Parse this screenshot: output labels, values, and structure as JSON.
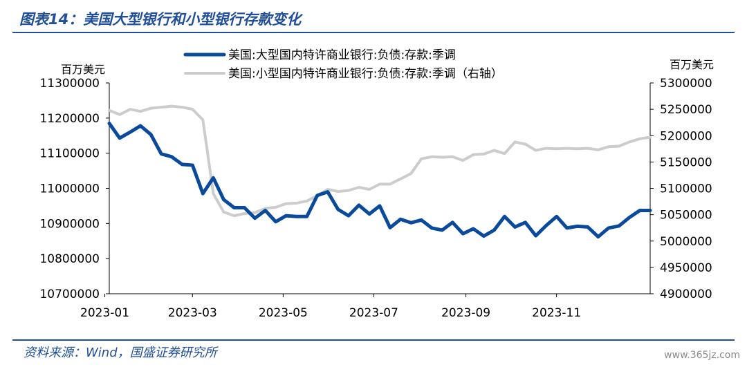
{
  "header": {
    "title": "图表14：美国大型银行和小型银行存款变化"
  },
  "footer": {
    "source": "资料来源：Wind，国盛证券研究所",
    "watermark": "www.365jz.com"
  },
  "chart_data": {
    "type": "line",
    "left_unit": "百万美元",
    "right_unit": "百万美元",
    "x_tick_labels": [
      "2023-01",
      "2023-03",
      "2023-05",
      "2023-07",
      "2023-09",
      "2023-11"
    ],
    "x_range": [
      "2023-01-04",
      "2024-01-03"
    ],
    "y_left": {
      "min": 10700000,
      "max": 11300000,
      "ticks": [
        10700000,
        10800000,
        10900000,
        11000000,
        11100000,
        11200000,
        11300000
      ]
    },
    "y_right": {
      "min": 4900000,
      "max": 5300000,
      "ticks": [
        4900000,
        4950000,
        5000000,
        5050000,
        5100000,
        5150000,
        5200000,
        5250000,
        5300000
      ]
    },
    "grid": false,
    "legend_position": "top",
    "series": [
      {
        "name": "美国:大型国内特许商业银行:负债:存款:季调",
        "axis": "left",
        "color": "#0a4a9c",
        "width": 5,
        "x": [
          "2023-01-04",
          "2023-01-11",
          "2023-01-18",
          "2023-01-25",
          "2023-02-01",
          "2023-02-08",
          "2023-02-15",
          "2023-02-22",
          "2023-03-01",
          "2023-03-08",
          "2023-03-15",
          "2023-03-22",
          "2023-03-29",
          "2023-04-05",
          "2023-04-12",
          "2023-04-19",
          "2023-04-26",
          "2023-05-03",
          "2023-05-10",
          "2023-05-17",
          "2023-05-24",
          "2023-05-31",
          "2023-06-07",
          "2023-06-14",
          "2023-06-21",
          "2023-06-28",
          "2023-07-05",
          "2023-07-12",
          "2023-07-19",
          "2023-07-26",
          "2023-08-02",
          "2023-08-09",
          "2023-08-16",
          "2023-08-23",
          "2023-08-30",
          "2023-09-06",
          "2023-09-13",
          "2023-09-20",
          "2023-09-27",
          "2023-10-04",
          "2023-10-11",
          "2023-10-18",
          "2023-10-25",
          "2023-11-01",
          "2023-11-08",
          "2023-11-15",
          "2023-11-22",
          "2023-11-29",
          "2023-12-06",
          "2023-12-13",
          "2023-12-20",
          "2023-12-27",
          "2024-01-03"
        ],
        "values": [
          11185000,
          11143000,
          11160000,
          11178000,
          11153000,
          11098000,
          11090000,
          11068000,
          11066000,
          10985000,
          11030000,
          10968000,
          10945000,
          10945000,
          10915000,
          10937000,
          10905000,
          10922000,
          10920000,
          10920000,
          10980000,
          10990000,
          10940000,
          10922000,
          10952000,
          10927000,
          10950000,
          10888000,
          10912000,
          10902000,
          10910000,
          10887000,
          10881000,
          10903000,
          10871000,
          10885000,
          10864000,
          10881000,
          10920000,
          10890000,
          10903000,
          10865000,
          10894000,
          10920000,
          10887000,
          10892000,
          10890000,
          10862000,
          10887000,
          10893000,
          10917000,
          10937000,
          10937000
        ]
      },
      {
        "name": "美国:小型国内特许商业银行:负债:存款:季调（右轴）",
        "axis": "right",
        "color": "#cccccc",
        "width": 4,
        "x": [
          "2023-01-04",
          "2023-01-11",
          "2023-01-18",
          "2023-01-25",
          "2023-02-01",
          "2023-02-08",
          "2023-02-15",
          "2023-02-22",
          "2023-03-01",
          "2023-03-08",
          "2023-03-15",
          "2023-03-22",
          "2023-03-29",
          "2023-04-05",
          "2023-04-12",
          "2023-04-19",
          "2023-04-26",
          "2023-05-03",
          "2023-05-10",
          "2023-05-17",
          "2023-05-24",
          "2023-05-31",
          "2023-06-07",
          "2023-06-14",
          "2023-06-21",
          "2023-06-28",
          "2023-07-05",
          "2023-07-12",
          "2023-07-19",
          "2023-07-26",
          "2023-08-02",
          "2023-08-09",
          "2023-08-16",
          "2023-08-23",
          "2023-08-30",
          "2023-09-06",
          "2023-09-13",
          "2023-09-20",
          "2023-09-27",
          "2023-10-04",
          "2023-10-11",
          "2023-10-18",
          "2023-10-25",
          "2023-11-01",
          "2023-11-08",
          "2023-11-15",
          "2023-11-22",
          "2023-11-29",
          "2023-12-06",
          "2023-12-13",
          "2023-12-20",
          "2023-12-27",
          "2024-01-03"
        ],
        "values": [
          5248000,
          5240000,
          5250000,
          5246000,
          5252000,
          5254000,
          5256000,
          5254000,
          5250000,
          5230000,
          5090000,
          5055000,
          5048000,
          5052000,
          5054000,
          5062000,
          5064000,
          5071000,
          5072000,
          5076000,
          5086000,
          5098000,
          5094000,
          5096000,
          5102000,
          5098000,
          5108000,
          5108000,
          5118000,
          5128000,
          5156000,
          5160000,
          5159000,
          5160000,
          5153000,
          5164000,
          5165000,
          5172000,
          5166000,
          5188000,
          5184000,
          5172000,
          5176000,
          5175000,
          5176000,
          5175000,
          5176000,
          5173000,
          5179000,
          5180000,
          5188000,
          5194000,
          5197000
        ]
      }
    ]
  }
}
